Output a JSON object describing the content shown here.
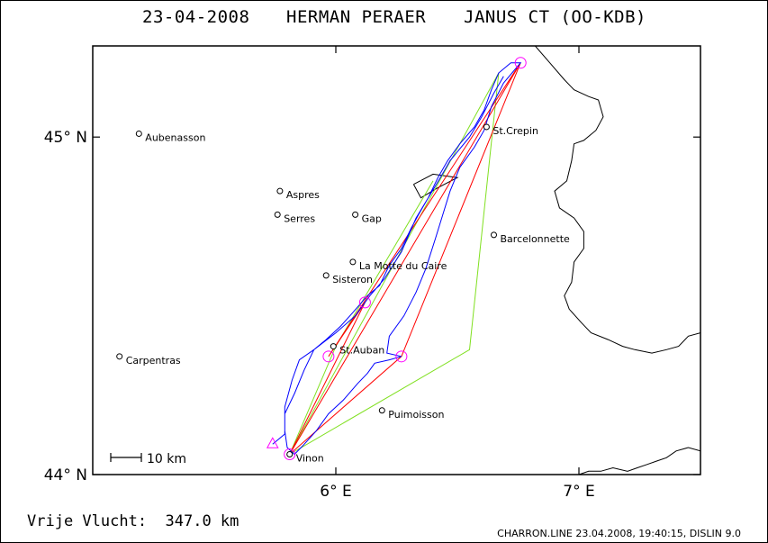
{
  "header": {
    "date": "23-04-2008",
    "pilot": "HERMAN PERAER",
    "glider": "JANUS CT (OO-KDB)"
  },
  "footer": {
    "distance": "Vrije Vlucht:  347.0 km",
    "meta": "CHARRON.LINE 23.04.2008, 19:40:15, DISLIN 9.0"
  },
  "scale_bar": {
    "label": "10 km",
    "km": 10
  },
  "chart_data": {
    "type": "map",
    "xlim": [
      5.0,
      7.5
    ],
    "ylim": [
      44.0,
      45.27
    ],
    "x_ticks": [
      {
        "v": 6.0,
        "label": "6° E"
      },
      {
        "v": 7.0,
        "label": "7° E"
      }
    ],
    "y_ticks": [
      {
        "v": 44.0,
        "label": "44° N"
      },
      {
        "v": 45.0,
        "label": "45° N"
      }
    ],
    "colors": {
      "track": "#0000ff",
      "task_red": "#ff0000",
      "task_green": "#80e020",
      "turnpoint": "#ff00ff",
      "border": "#000000"
    },
    "places": [
      {
        "name": "Aubenasson",
        "lon": 5.19,
        "lat": 45.01
      },
      {
        "name": "Aspres",
        "lon": 5.77,
        "lat": 44.84
      },
      {
        "name": "Serres",
        "lon": 5.76,
        "lat": 44.77
      },
      {
        "name": "Gap",
        "lon": 6.08,
        "lat": 44.77
      },
      {
        "name": "La Motte du Caire",
        "lon": 6.07,
        "lat": 44.63
      },
      {
        "name": "Sisteron",
        "lon": 5.96,
        "lat": 44.59
      },
      {
        "name": "Barcelonnette",
        "lon": 6.65,
        "lat": 44.71
      },
      {
        "name": "St.Crepin",
        "lon": 6.62,
        "lat": 45.03
      },
      {
        "name": "St.Auban",
        "lon": 5.99,
        "lat": 44.38
      },
      {
        "name": "Carpentras",
        "lon": 5.11,
        "lat": 44.35
      },
      {
        "name": "Puimoisson",
        "lon": 6.19,
        "lat": 44.19
      },
      {
        "name": "Vinon",
        "lon": 5.81,
        "lat": 44.06
      }
    ],
    "red_task": [
      [
        5.81,
        44.06
      ],
      [
        6.76,
        45.22
      ],
      [
        6.27,
        44.35
      ],
      [
        5.81,
        44.06
      ],
      [
        6.12,
        44.51
      ],
      [
        5.97,
        44.35
      ],
      [
        6.76,
        45.22
      ]
    ],
    "green_task": [
      [
        5.81,
        44.06
      ],
      [
        6.67,
        45.19
      ],
      [
        6.55,
        44.37
      ],
      [
        5.81,
        44.06
      ],
      [
        6.0,
        44.38
      ],
      [
        6.4,
        44.87
      ]
    ],
    "turnpoints": [
      [
        6.76,
        45.22
      ],
      [
        6.27,
        44.35
      ],
      [
        6.12,
        44.51
      ],
      [
        5.97,
        44.35
      ],
      [
        5.81,
        44.06
      ]
    ],
    "track": [
      [
        5.74,
        44.09
      ],
      [
        5.79,
        44.12
      ],
      [
        5.79,
        44.18
      ],
      [
        5.83,
        44.24
      ],
      [
        5.87,
        44.31
      ],
      [
        5.91,
        44.37
      ],
      [
        5.96,
        44.4
      ],
      [
        6.02,
        44.44
      ],
      [
        6.07,
        44.48
      ],
      [
        6.13,
        44.53
      ],
      [
        6.18,
        44.56
      ],
      [
        6.22,
        44.62
      ],
      [
        6.27,
        44.67
      ],
      [
        6.31,
        44.73
      ],
      [
        6.34,
        44.77
      ],
      [
        6.38,
        44.82
      ],
      [
        6.42,
        44.88
      ],
      [
        6.46,
        44.93
      ],
      [
        6.51,
        44.98
      ],
      [
        6.57,
        45.03
      ],
      [
        6.61,
        45.08
      ],
      [
        6.64,
        45.14
      ],
      [
        6.67,
        45.19
      ],
      [
        6.72,
        45.22
      ],
      [
        6.76,
        45.22
      ],
      [
        6.69,
        45.16
      ],
      [
        6.64,
        45.09
      ],
      [
        6.61,
        45.02
      ],
      [
        6.57,
        44.97
      ],
      [
        6.51,
        44.91
      ],
      [
        6.47,
        44.84
      ],
      [
        6.44,
        44.77
      ],
      [
        6.41,
        44.7
      ],
      [
        6.37,
        44.61
      ],
      [
        6.33,
        44.54
      ],
      [
        6.28,
        44.47
      ],
      [
        6.22,
        44.41
      ],
      [
        6.21,
        44.36
      ],
      [
        6.27,
        44.35
      ],
      [
        6.22,
        44.34
      ],
      [
        6.16,
        44.33
      ],
      [
        6.13,
        44.3
      ],
      [
        6.09,
        44.27
      ],
      [
        6.03,
        44.22
      ],
      [
        5.97,
        44.18
      ],
      [
        5.92,
        44.13
      ],
      [
        5.87,
        44.09
      ],
      [
        5.83,
        44.06
      ],
      [
        5.8,
        44.08
      ],
      [
        5.79,
        44.13
      ],
      [
        5.79,
        44.2
      ],
      [
        5.82,
        44.28
      ],
      [
        5.85,
        44.34
      ],
      [
        5.91,
        44.37
      ],
      [
        6.0,
        44.42
      ],
      [
        6.08,
        44.47
      ],
      [
        6.14,
        44.53
      ],
      [
        6.2,
        44.58
      ],
      [
        6.27,
        44.66
      ],
      [
        6.33,
        44.76
      ],
      [
        6.38,
        44.82
      ],
      [
        6.43,
        44.88
      ],
      [
        6.47,
        44.93
      ],
      [
        6.55,
        45.0
      ],
      [
        6.6,
        45.06
      ],
      [
        6.65,
        45.13
      ],
      [
        6.69,
        45.18
      ]
    ],
    "border": [
      [
        6.82,
        45.27
      ],
      [
        6.88,
        45.22
      ],
      [
        6.94,
        45.17
      ],
      [
        6.98,
        45.14
      ],
      [
        7.04,
        45.12
      ],
      [
        7.08,
        45.11
      ],
      [
        7.1,
        45.06
      ],
      [
        7.07,
        45.02
      ],
      [
        7.02,
        44.99
      ],
      [
        6.98,
        44.98
      ],
      [
        6.97,
        44.93
      ],
      [
        6.95,
        44.87
      ],
      [
        6.9,
        44.84
      ],
      [
        6.92,
        44.79
      ],
      [
        6.98,
        44.76
      ],
      [
        7.02,
        44.72
      ],
      [
        7.02,
        44.67
      ],
      [
        6.98,
        44.63
      ],
      [
        6.97,
        44.57
      ],
      [
        6.94,
        44.53
      ],
      [
        6.96,
        44.49
      ],
      [
        7.01,
        44.45
      ],
      [
        7.05,
        44.42
      ],
      [
        7.12,
        44.4
      ],
      [
        7.18,
        44.38
      ],
      [
        7.23,
        44.37
      ],
      [
        7.3,
        44.36
      ],
      [
        7.36,
        44.37
      ],
      [
        7.41,
        44.38
      ],
      [
        7.45,
        44.41
      ],
      [
        7.5,
        44.42
      ]
    ],
    "coast": [
      [
        7.5,
        44.07
      ],
      [
        7.45,
        44.08
      ],
      [
        7.4,
        44.07
      ],
      [
        7.36,
        44.05
      ],
      [
        7.32,
        44.04
      ],
      [
        7.28,
        44.03
      ],
      [
        7.24,
        44.02
      ],
      [
        7.2,
        44.01
      ],
      [
        7.14,
        44.02
      ],
      [
        7.09,
        44.01
      ],
      [
        7.04,
        44.01
      ],
      [
        7.0,
        44.0
      ]
    ],
    "lake": [
      [
        6.32,
        44.86
      ],
      [
        6.4,
        44.89
      ],
      [
        6.5,
        44.88
      ],
      [
        6.42,
        44.85
      ],
      [
        6.35,
        44.82
      ],
      [
        6.32,
        44.86
      ]
    ]
  }
}
